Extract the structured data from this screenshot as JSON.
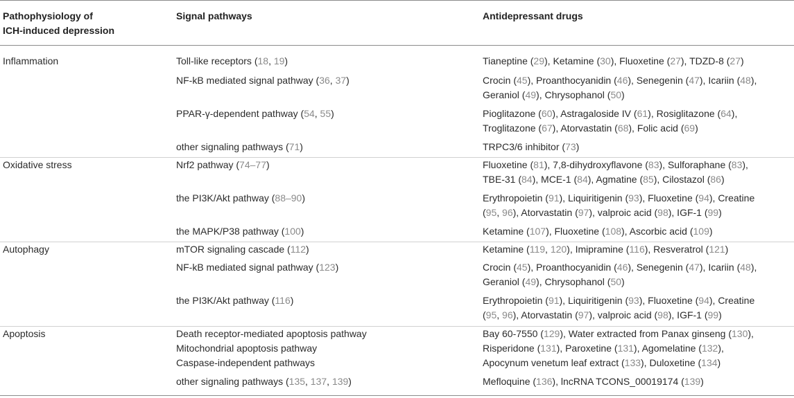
{
  "header": {
    "col1_line1": "Pathophysiology of",
    "col1_line2": "ICH-induced depression",
    "col2": "Signal pathways",
    "col3": "Antidepressant drugs"
  },
  "rows": [
    {
      "pathophysiology": "Inflammation",
      "pathway": [
        {
          "t": "Toll-like receptors ("
        },
        {
          "t": "18",
          "r": 1
        },
        {
          "t": ", "
        },
        {
          "t": "19",
          "r": 1
        },
        {
          "t": ")"
        }
      ],
      "drugs": [
        [
          {
            "t": "Tianeptine ("
          },
          {
            "t": "29",
            "r": 1
          },
          {
            "t": "), Ketamine ("
          },
          {
            "t": "30",
            "r": 1
          },
          {
            "t": "), Fluoxetine ("
          },
          {
            "t": "27",
            "r": 1
          },
          {
            "t": "), TDZD-8 ("
          },
          {
            "t": "27",
            "r": 1
          },
          {
            "t": ")"
          }
        ]
      ]
    },
    {
      "pathophysiology": "",
      "pathway": [
        {
          "t": "NF-kB mediated signal pathway ("
        },
        {
          "t": "36",
          "r": 1
        },
        {
          "t": ", "
        },
        {
          "t": "37",
          "r": 1
        },
        {
          "t": ")"
        }
      ],
      "drugs": [
        [
          {
            "t": "Crocin ("
          },
          {
            "t": "45",
            "r": 1
          },
          {
            "t": "), Proanthocyanidin ("
          },
          {
            "t": "46",
            "r": 1
          },
          {
            "t": "), Senegenin ("
          },
          {
            "t": "47",
            "r": 1
          },
          {
            "t": "), Icariin ("
          },
          {
            "t": "48",
            "r": 1
          },
          {
            "t": "),"
          }
        ],
        [
          {
            "t": "Geraniol ("
          },
          {
            "t": "49",
            "r": 1
          },
          {
            "t": "), Chrysophanol ("
          },
          {
            "t": "50",
            "r": 1
          },
          {
            "t": ")"
          }
        ]
      ]
    },
    {
      "pathophysiology": "",
      "pathway": [
        {
          "t": "PPAR-γ-dependent pathway ("
        },
        {
          "t": "54",
          "r": 1
        },
        {
          "t": ", "
        },
        {
          "t": "55",
          "r": 1
        },
        {
          "t": ")"
        }
      ],
      "drugs": [
        [
          {
            "t": "Pioglitazone ("
          },
          {
            "t": "60",
            "r": 1
          },
          {
            "t": "), Astragaloside IV ("
          },
          {
            "t": "61",
            "r": 1
          },
          {
            "t": "), Rosiglitazone ("
          },
          {
            "t": "64",
            "r": 1
          },
          {
            "t": "),"
          }
        ],
        [
          {
            "t": "Troglitazone ("
          },
          {
            "t": "67",
            "r": 1
          },
          {
            "t": "), Atorvastatin ("
          },
          {
            "t": "68",
            "r": 1
          },
          {
            "t": "), Folic acid ("
          },
          {
            "t": "69",
            "r": 1
          },
          {
            "t": ")"
          }
        ]
      ]
    },
    {
      "pathophysiology": "",
      "pathway": [
        {
          "t": "other signaling pathways ("
        },
        {
          "t": "71",
          "r": 1
        },
        {
          "t": ")"
        }
      ],
      "drugs": [
        [
          {
            "t": "TRPC3/6 inhibitor ("
          },
          {
            "t": "73",
            "r": 1
          },
          {
            "t": ")"
          }
        ]
      ]
    },
    {
      "pathophysiology": "Oxidative stress",
      "pathway": [
        {
          "t": "Nrf2 pathway ("
        },
        {
          "t": "74–77",
          "r": 1
        },
        {
          "t": ")"
        }
      ],
      "drugs": [
        [
          {
            "t": "Fluoxetine ("
          },
          {
            "t": "81",
            "r": 1
          },
          {
            "t": "), 7,8-dihydroxyflavone ("
          },
          {
            "t": "83",
            "r": 1
          },
          {
            "t": "), Sulforaphane ("
          },
          {
            "t": "83",
            "r": 1
          },
          {
            "t": "),"
          }
        ],
        [
          {
            "t": "TBE-31 ("
          },
          {
            "t": "84",
            "r": 1
          },
          {
            "t": "), MCE-1 ("
          },
          {
            "t": "84",
            "r": 1
          },
          {
            "t": "), Agmatine ("
          },
          {
            "t": "85",
            "r": 1
          },
          {
            "t": "), Cilostazol ("
          },
          {
            "t": "86",
            "r": 1
          },
          {
            "t": ")"
          }
        ]
      ]
    },
    {
      "pathophysiology": "",
      "pathway": [
        {
          "t": "the PI3K/Akt pathway ("
        },
        {
          "t": "88–90",
          "r": 1
        },
        {
          "t": ")"
        }
      ],
      "drugs": [
        [
          {
            "t": "Erythropoietin ("
          },
          {
            "t": "91",
            "r": 1
          },
          {
            "t": "), Liquiritigenin ("
          },
          {
            "t": "93",
            "r": 1
          },
          {
            "t": "), Fluoxetine ("
          },
          {
            "t": "94",
            "r": 1
          },
          {
            "t": "), Creatine"
          }
        ],
        [
          {
            "t": "("
          },
          {
            "t": "95",
            "r": 1
          },
          {
            "t": ", "
          },
          {
            "t": "96",
            "r": 1
          },
          {
            "t": "), Atorvastatin ("
          },
          {
            "t": "97",
            "r": 1
          },
          {
            "t": "), valproic acid ("
          },
          {
            "t": "98",
            "r": 1
          },
          {
            "t": "), IGF-1 ("
          },
          {
            "t": "99",
            "r": 1
          },
          {
            "t": ")"
          }
        ]
      ]
    },
    {
      "pathophysiology": "",
      "pathway": [
        {
          "t": "the MAPK/P38 pathway ("
        },
        {
          "t": "100",
          "r": 1
        },
        {
          "t": ")"
        }
      ],
      "drugs": [
        [
          {
            "t": "Ketamine ("
          },
          {
            "t": "107",
            "r": 1
          },
          {
            "t": "), Fluoxetine ("
          },
          {
            "t": "108",
            "r": 1
          },
          {
            "t": "), Ascorbic acid ("
          },
          {
            "t": "109",
            "r": 1
          },
          {
            "t": ")"
          }
        ]
      ]
    },
    {
      "pathophysiology": "Autophagy",
      "pathway": [
        {
          "t": "mTOR signaling cascade ("
        },
        {
          "t": "112",
          "r": 1
        },
        {
          "t": ")"
        }
      ],
      "drugs": [
        [
          {
            "t": "Ketamine ("
          },
          {
            "t": "119",
            "r": 1
          },
          {
            "t": ", "
          },
          {
            "t": "120",
            "r": 1
          },
          {
            "t": "), Imipramine ("
          },
          {
            "t": "116",
            "r": 1
          },
          {
            "t": "), Resveratrol ("
          },
          {
            "t": "121",
            "r": 1
          },
          {
            "t": ")"
          }
        ]
      ]
    },
    {
      "pathophysiology": "",
      "pathway": [
        {
          "t": "NF-kB mediated signal pathway ("
        },
        {
          "t": "123",
          "r": 1
        },
        {
          "t": ")"
        }
      ],
      "drugs": [
        [
          {
            "t": "Crocin ("
          },
          {
            "t": "45",
            "r": 1
          },
          {
            "t": "), Proanthocyanidin ("
          },
          {
            "t": "46",
            "r": 1
          },
          {
            "t": "), Senegenin ("
          },
          {
            "t": "47",
            "r": 1
          },
          {
            "t": "), Icariin ("
          },
          {
            "t": "48",
            "r": 1
          },
          {
            "t": "),"
          }
        ],
        [
          {
            "t": "Geraniol ("
          },
          {
            "t": "49",
            "r": 1
          },
          {
            "t": "), Chrysophanol ("
          },
          {
            "t": "50",
            "r": 1
          },
          {
            "t": ")"
          }
        ]
      ]
    },
    {
      "pathophysiology": "",
      "pathway": [
        {
          "t": "the PI3K/Akt pathway ("
        },
        {
          "t": "116",
          "r": 1
        },
        {
          "t": ")"
        }
      ],
      "drugs": [
        [
          {
            "t": "Erythropoietin ("
          },
          {
            "t": "91",
            "r": 1
          },
          {
            "t": "), Liquiritigenin ("
          },
          {
            "t": "93",
            "r": 1
          },
          {
            "t": "), Fluoxetine ("
          },
          {
            "t": "94",
            "r": 1
          },
          {
            "t": "), Creatine"
          }
        ],
        [
          {
            "t": "("
          },
          {
            "t": "95",
            "r": 1
          },
          {
            "t": ", "
          },
          {
            "t": "96",
            "r": 1
          },
          {
            "t": "), Atorvastatin ("
          },
          {
            "t": "97",
            "r": 1
          },
          {
            "t": "), valproic acid ("
          },
          {
            "t": "98",
            "r": 1
          },
          {
            "t": "), IGF-1 ("
          },
          {
            "t": "99",
            "r": 1
          },
          {
            "t": ")"
          }
        ]
      ]
    },
    {
      "pathophysiology": "Apoptosis",
      "pathway_lines": [
        [
          {
            "t": "Death receptor-mediated apoptosis pathway"
          }
        ],
        [
          {
            "t": "Mitochondrial apoptosis pathway"
          }
        ],
        [
          {
            "t": "Caspase-independent pathways"
          }
        ]
      ],
      "drugs": [
        [
          {
            "t": "Bay 60-7550 ("
          },
          {
            "t": "129",
            "r": 1
          },
          {
            "t": "), Water extracted from Panax ginseng ("
          },
          {
            "t": "130",
            "r": 1
          },
          {
            "t": "),"
          }
        ],
        [
          {
            "t": "Risperidone ("
          },
          {
            "t": "131",
            "r": 1
          },
          {
            "t": "), Paroxetine ("
          },
          {
            "t": "131",
            "r": 1
          },
          {
            "t": "), Agomelatine ("
          },
          {
            "t": "132",
            "r": 1
          },
          {
            "t": "),"
          }
        ],
        [
          {
            "t": "Apocynum venetum leaf extract ("
          },
          {
            "t": "133",
            "r": 1
          },
          {
            "t": "), Duloxetine ("
          },
          {
            "t": "134",
            "r": 1
          },
          {
            "t": ")"
          }
        ]
      ]
    },
    {
      "pathophysiology": "",
      "pathway": [
        {
          "t": "other signaling pathways ("
        },
        {
          "t": "135",
          "r": 1
        },
        {
          "t": ", "
        },
        {
          "t": "137",
          "r": 1
        },
        {
          "t": ", "
        },
        {
          "t": "139",
          "r": 1
        },
        {
          "t": ")"
        }
      ],
      "drugs": [
        [
          {
            "t": "Mefloquine ("
          },
          {
            "t": "136",
            "r": 1
          },
          {
            "t": "), lncRNA TCONS_00019174 ("
          },
          {
            "t": "139",
            "r": 1
          },
          {
            "t": ")"
          }
        ]
      ]
    }
  ],
  "colors": {
    "text": "#2b2b2b",
    "reference": "#8a8a8a",
    "rule": "#8a8a8a"
  }
}
